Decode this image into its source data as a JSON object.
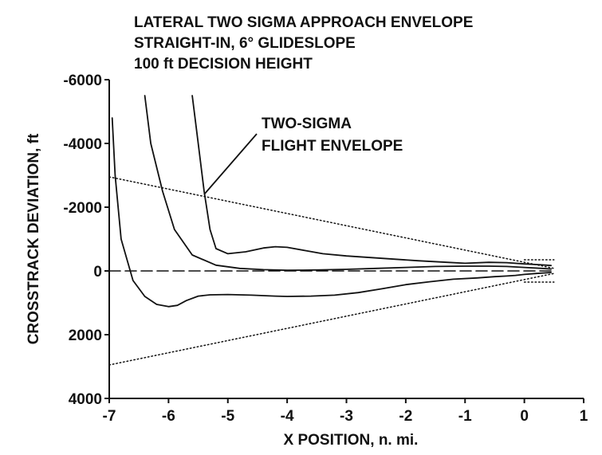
{
  "chart_data": {
    "type": "line",
    "title_lines": [
      "LATERAL TWO SIGMA APPROACH ENVELOPE",
      "STRAIGHT-IN, 6° GLIDESLOPE",
      "100 ft DECISION HEIGHT"
    ],
    "xlabel": "X POSITION, n. mi.",
    "ylabel": "CROSSTRACK DEVIATION, ft",
    "xlim": [
      -7,
      1
    ],
    "ylim": [
      -6000,
      4000
    ],
    "y_axis_inverted": true,
    "x_ticks": [
      -7,
      -6,
      -5,
      -4,
      -3,
      -2,
      -1,
      0,
      1
    ],
    "x_tick_labels": [
      "-7",
      "-6",
      "-5",
      "-4",
      "-3",
      "-2",
      "-1",
      "0",
      "1"
    ],
    "y_ticks": [
      -6000,
      -4000,
      -2000,
      0,
      2000,
      4000
    ],
    "y_tick_labels": [
      "-6000",
      "-4000",
      "-2000",
      "0",
      "2000",
      "4000"
    ],
    "grid": false,
    "annotation": {
      "lines": [
        "TWO-SIGMA",
        "FLIGHT ENVELOPE"
      ],
      "points_to": {
        "x": -5.4,
        "y": -2400
      }
    },
    "series": [
      {
        "style": "solid",
        "points": [
          [
            -6.95,
            -4800
          ],
          [
            -6.9,
            -3000
          ],
          [
            -6.8,
            -1000
          ],
          [
            -6.6,
            300
          ],
          [
            -6.4,
            800
          ],
          [
            -6.2,
            1050
          ],
          [
            -6.0,
            1120
          ],
          [
            -5.85,
            1080
          ],
          [
            -5.7,
            930
          ],
          [
            -5.5,
            790
          ],
          [
            -5.3,
            750
          ],
          [
            -5.0,
            740
          ],
          [
            -4.6,
            760
          ],
          [
            -4.2,
            790
          ],
          [
            -4.0,
            800
          ],
          [
            -3.6,
            790
          ],
          [
            -3.2,
            760
          ],
          [
            -2.8,
            680
          ],
          [
            -2.4,
            560
          ],
          [
            -2.0,
            430
          ],
          [
            -1.6,
            340
          ],
          [
            -1.2,
            260
          ],
          [
            -0.8,
            220
          ],
          [
            -0.5,
            180
          ],
          [
            -0.3,
            160
          ],
          [
            -0.15,
            140
          ],
          [
            0.0,
            110
          ],
          [
            0.2,
            80
          ],
          [
            0.45,
            50
          ]
        ]
      },
      {
        "style": "solid",
        "points": [
          [
            -6.4,
            -5500
          ],
          [
            -6.3,
            -4000
          ],
          [
            -6.1,
            -2500
          ],
          [
            -5.9,
            -1300
          ],
          [
            -5.6,
            -500
          ],
          [
            -5.2,
            -180
          ],
          [
            -4.8,
            -80
          ],
          [
            -4.4,
            -40
          ],
          [
            -4.0,
            -20
          ],
          [
            -3.5,
            -30
          ],
          [
            -3.0,
            -50
          ],
          [
            -2.5,
            -80
          ],
          [
            -2.0,
            -110
          ],
          [
            -1.5,
            -140
          ],
          [
            -1.0,
            -150
          ],
          [
            -0.6,
            -150
          ],
          [
            -0.3,
            -140
          ],
          [
            0.0,
            -110
          ],
          [
            0.3,
            -80
          ],
          [
            0.45,
            -60
          ]
        ]
      },
      {
        "style": "solid",
        "points": [
          [
            -5.6,
            -5500
          ],
          [
            -5.5,
            -4000
          ],
          [
            -5.4,
            -2500
          ],
          [
            -5.3,
            -1300
          ],
          [
            -5.2,
            -700
          ],
          [
            -5.0,
            -540
          ],
          [
            -4.7,
            -600
          ],
          [
            -4.4,
            -720
          ],
          [
            -4.2,
            -760
          ],
          [
            -4.0,
            -740
          ],
          [
            -3.7,
            -640
          ],
          [
            -3.4,
            -540
          ],
          [
            -3.0,
            -470
          ],
          [
            -2.6,
            -420
          ],
          [
            -2.2,
            -370
          ],
          [
            -1.8,
            -320
          ],
          [
            -1.4,
            -280
          ],
          [
            -1.0,
            -240
          ],
          [
            -0.6,
            -270
          ],
          [
            -0.3,
            -260
          ],
          [
            0.0,
            -220
          ],
          [
            0.3,
            -190
          ],
          [
            0.45,
            -170
          ]
        ]
      },
      {
        "style": "dashed",
        "points": [
          [
            -7,
            0
          ],
          [
            0.5,
            0
          ]
        ]
      },
      {
        "style": "dotted",
        "points": [
          [
            -7,
            -2950
          ],
          [
            0.5,
            -80
          ]
        ]
      },
      {
        "style": "dotted",
        "points": [
          [
            -7,
            2950
          ],
          [
            0.5,
            80
          ]
        ]
      },
      {
        "style": "dotted",
        "points": [
          [
            0,
            -350
          ],
          [
            0.5,
            -350
          ]
        ]
      },
      {
        "style": "dotted",
        "points": [
          [
            0,
            350
          ],
          [
            0.5,
            350
          ]
        ]
      }
    ],
    "colors": {
      "line": "#111111",
      "background": "#ffffff"
    }
  }
}
